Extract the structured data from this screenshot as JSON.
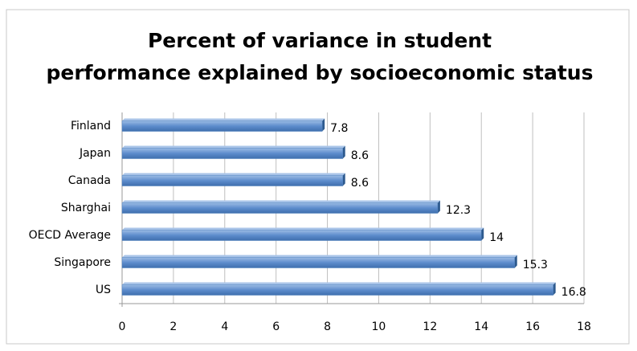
{
  "chart_data": {
    "type": "hbar",
    "title": "Percent of variance in student performance explained by socioeconomic status",
    "categories": [
      "Finland",
      "Japan",
      "Canada",
      "Sharghai",
      "OECD Average",
      "Singapore",
      "US"
    ],
    "values": [
      7.8,
      8.6,
      8.6,
      12.3,
      14,
      15.3,
      16.8
    ],
    "color": "#4f81bd",
    "xlim": [
      0,
      18
    ],
    "xticks": [
      0,
      2,
      4,
      6,
      8,
      10,
      12,
      14,
      16,
      18
    ],
    "grid": true
  }
}
